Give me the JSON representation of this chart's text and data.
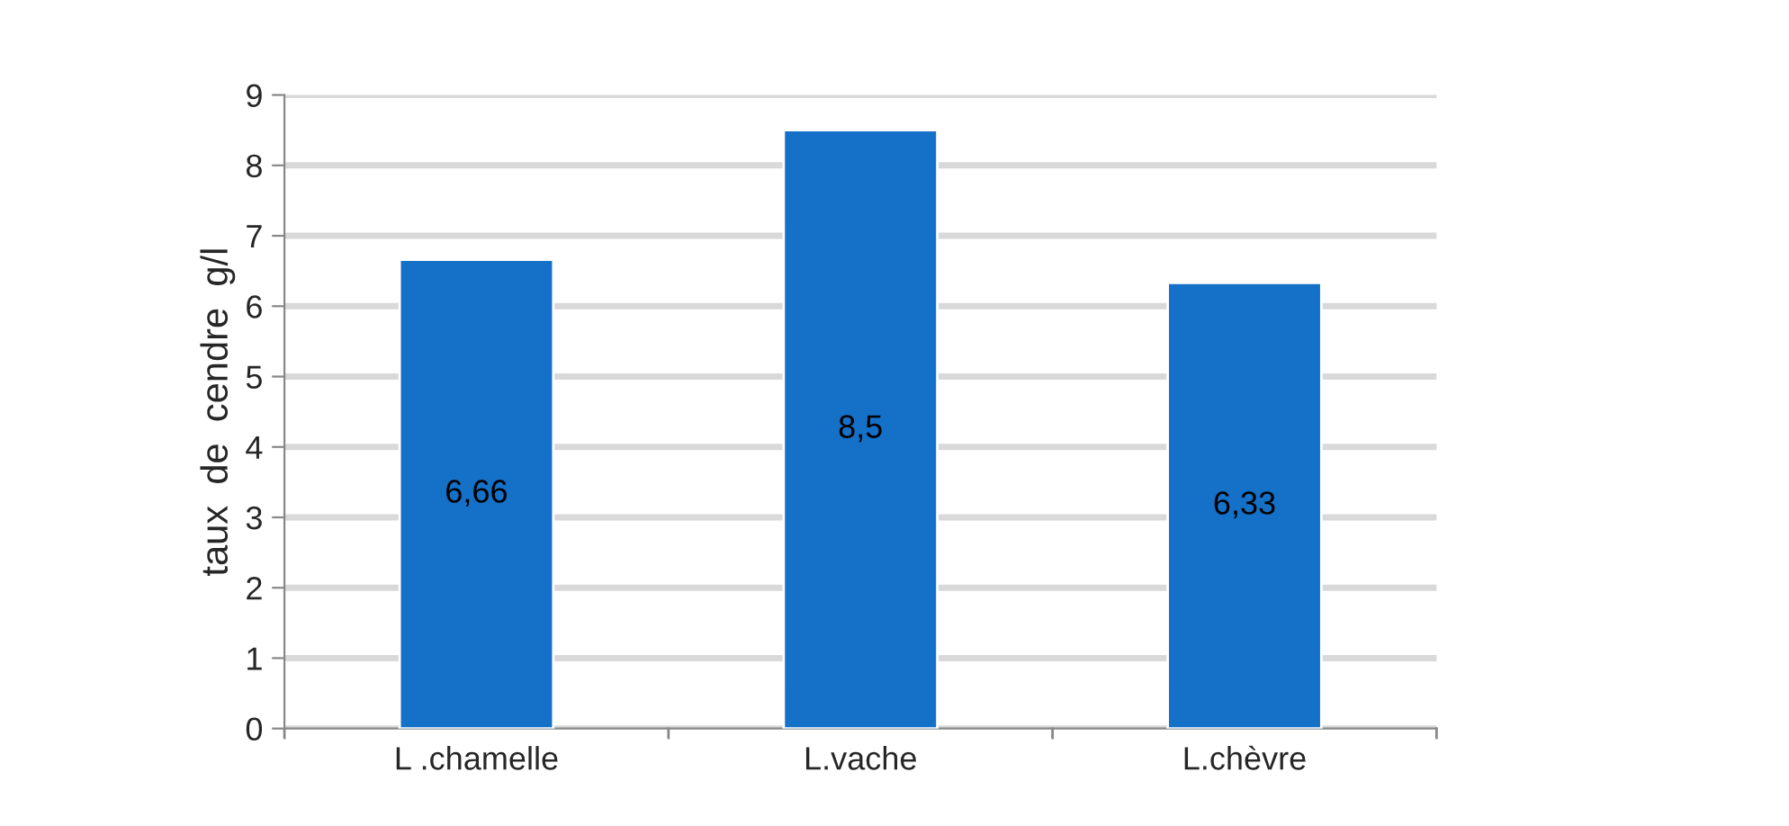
{
  "chart_data": {
    "type": "bar",
    "ylabel": "taux  de  cendre  g/l",
    "categories": [
      "L .chamelle",
      "L.vache",
      "L.chèvre"
    ],
    "values": [
      6.66,
      8.5,
      6.33
    ],
    "value_labels": [
      "6,66",
      "8,5",
      "6,33"
    ],
    "color": "#1570c8",
    "ylim": [
      0,
      9
    ],
    "yticks": [
      0,
      1,
      2,
      3,
      4,
      5,
      6,
      7,
      8,
      9
    ],
    "grid": "y",
    "legend": false
  }
}
